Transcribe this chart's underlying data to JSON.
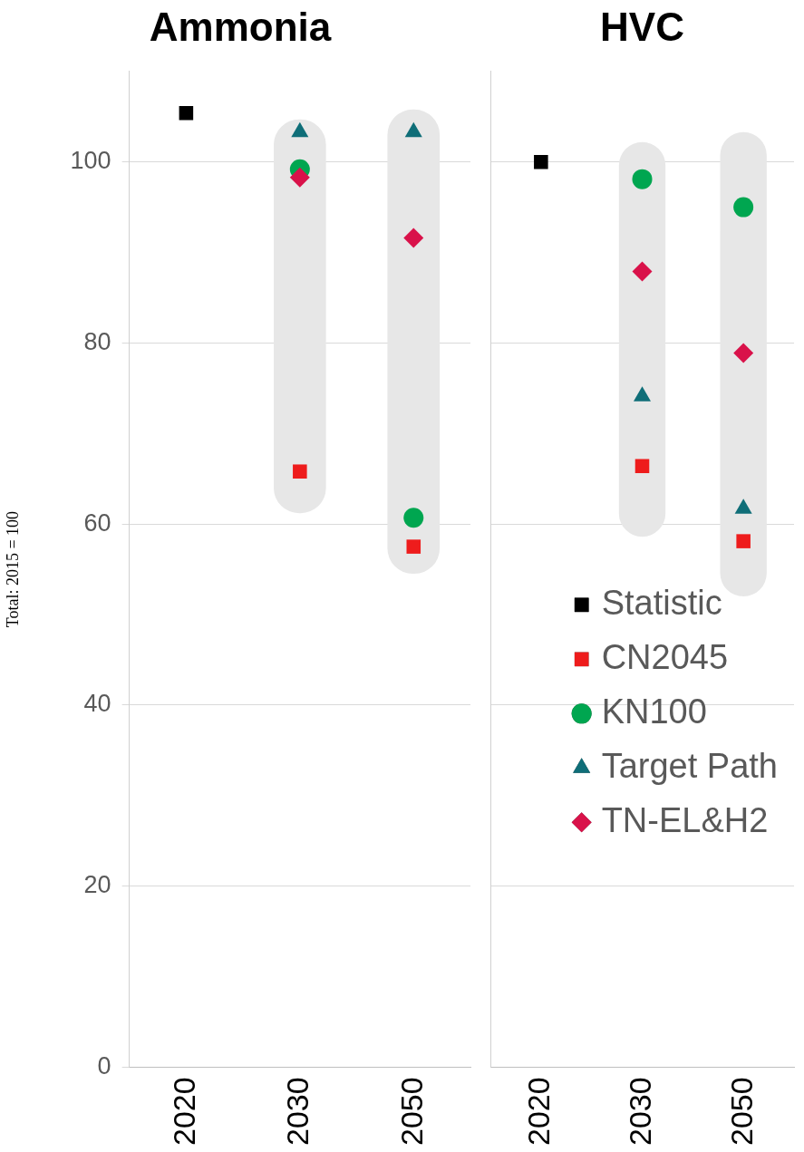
{
  "chart_data": [
    {
      "type": "scatter",
      "title": "Ammonia",
      "ylabel": "Total: 2015 = 100",
      "categories": [
        "2020",
        "2030",
        "2050"
      ],
      "ylim": [
        0,
        110
      ],
      "yticks": [
        0,
        20,
        40,
        60,
        80,
        100
      ],
      "grid": "y",
      "legend": false,
      "series": [
        {
          "type": "bar",
          "color": "#e7e7e7",
          "base": [
            null,
            61.2,
            54.5
          ],
          "values": [
            null,
            43.5,
            51.3
          ]
        },
        {
          "color": "#000000",
          "marker": "square",
          "values": [
            105.4,
            null,
            null
          ]
        },
        {
          "color": "#ee1c1c",
          "marker": "square",
          "values": [
            null,
            65.8,
            57.5
          ]
        },
        {
          "color": "#00a650",
          "marker": "circle",
          "values": [
            null,
            99.2,
            60.7
          ]
        },
        {
          "color": "#0f6e78",
          "marker": "triangle",
          "values": [
            null,
            103.3,
            103.3
          ]
        },
        {
          "color": "#d9124a",
          "marker": "diamond",
          "values": [
            null,
            98.3,
            91.6
          ]
        }
      ]
    },
    {
      "type": "scatter",
      "title": "HVC",
      "categories": [
        "2020",
        "2030",
        "2050"
      ],
      "ylim": [
        0,
        110
      ],
      "yticks": [
        0,
        20,
        40,
        60,
        80,
        100
      ],
      "grid": "y",
      "tick_labels": "x",
      "legend": "bottom right",
      "series": [
        {
          "type": "bar",
          "color": "#e7e7e7",
          "base": [
            null,
            58.6,
            52.0
          ],
          "values": [
            null,
            43.6,
            51.3
          ]
        },
        {
          "name": "Statistic",
          "color": "#000000",
          "marker": "square",
          "values": [
            100,
            null,
            null
          ]
        },
        {
          "name": "CN2045",
          "color": "#ee1c1c",
          "marker": "square",
          "values": [
            null,
            66.4,
            58.1
          ]
        },
        {
          "name": "KN100",
          "color": "#00a650",
          "marker": "circle",
          "values": [
            null,
            98.1,
            95.0
          ]
        },
        {
          "name": "Target Path",
          "color": "#0f6e78",
          "marker": "triangle",
          "values": [
            null,
            74.1,
            61.7
          ]
        },
        {
          "name": "TN-EL&H2",
          "color": "#d9124a",
          "marker": "diamond",
          "values": [
            null,
            87.9,
            78.9
          ]
        }
      ]
    }
  ]
}
